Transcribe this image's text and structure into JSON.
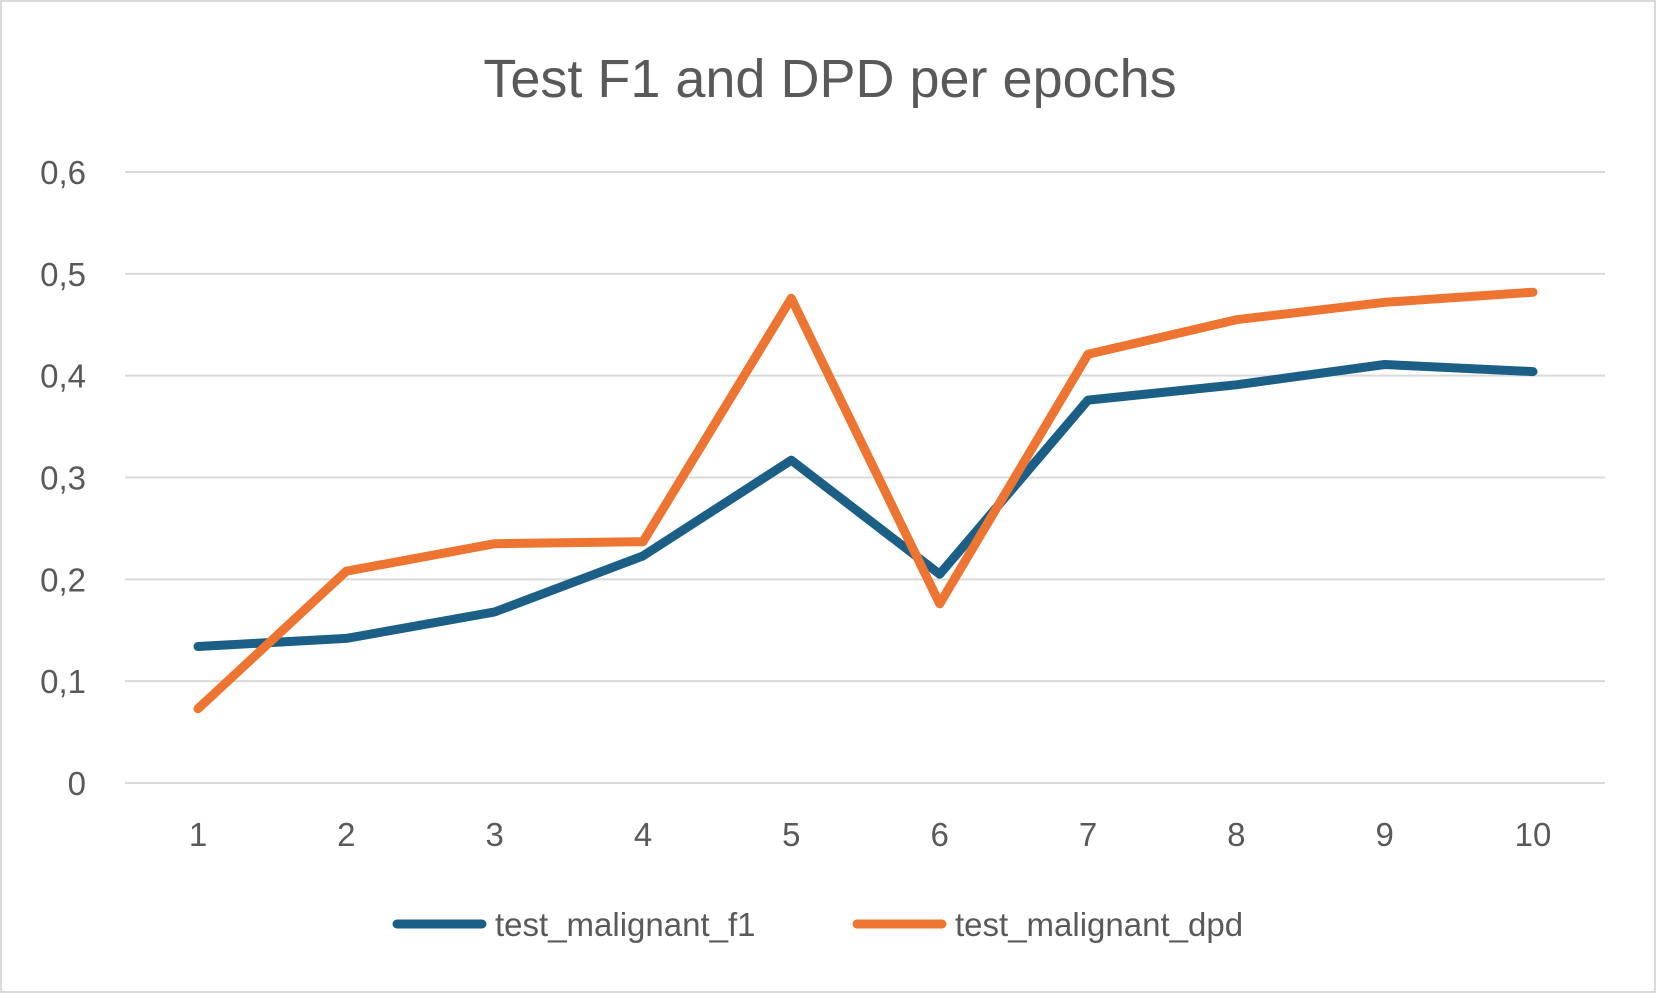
{
  "chart_data": {
    "type": "line",
    "title": "Test F1 and DPD per epochs",
    "xlabel": "",
    "ylabel": "",
    "categories": [
      "1",
      "2",
      "3",
      "4",
      "5",
      "6",
      "7",
      "8",
      "9",
      "10"
    ],
    "ylim": [
      0,
      0.6
    ],
    "y_ticks": [
      "0",
      "0,1",
      "0,2",
      "0,3",
      "0,4",
      "0,5",
      "0,6"
    ],
    "y_tick_values": [
      0,
      0.1,
      0.2,
      0.3,
      0.4,
      0.5,
      0.6
    ],
    "grid": true,
    "legend_position": "bottom",
    "series": [
      {
        "name": "test_malignant_f1",
        "color": "#1b5f87",
        "values": [
          0.134,
          0.142,
          0.168,
          0.223,
          0.317,
          0.205,
          0.376,
          0.391,
          0.411,
          0.404
        ]
      },
      {
        "name": "test_malignant_dpd",
        "color": "#ed7431",
        "values": [
          0.073,
          0.208,
          0.235,
          0.237,
          0.476,
          0.176,
          0.421,
          0.455,
          0.472,
          0.482
        ]
      }
    ]
  }
}
